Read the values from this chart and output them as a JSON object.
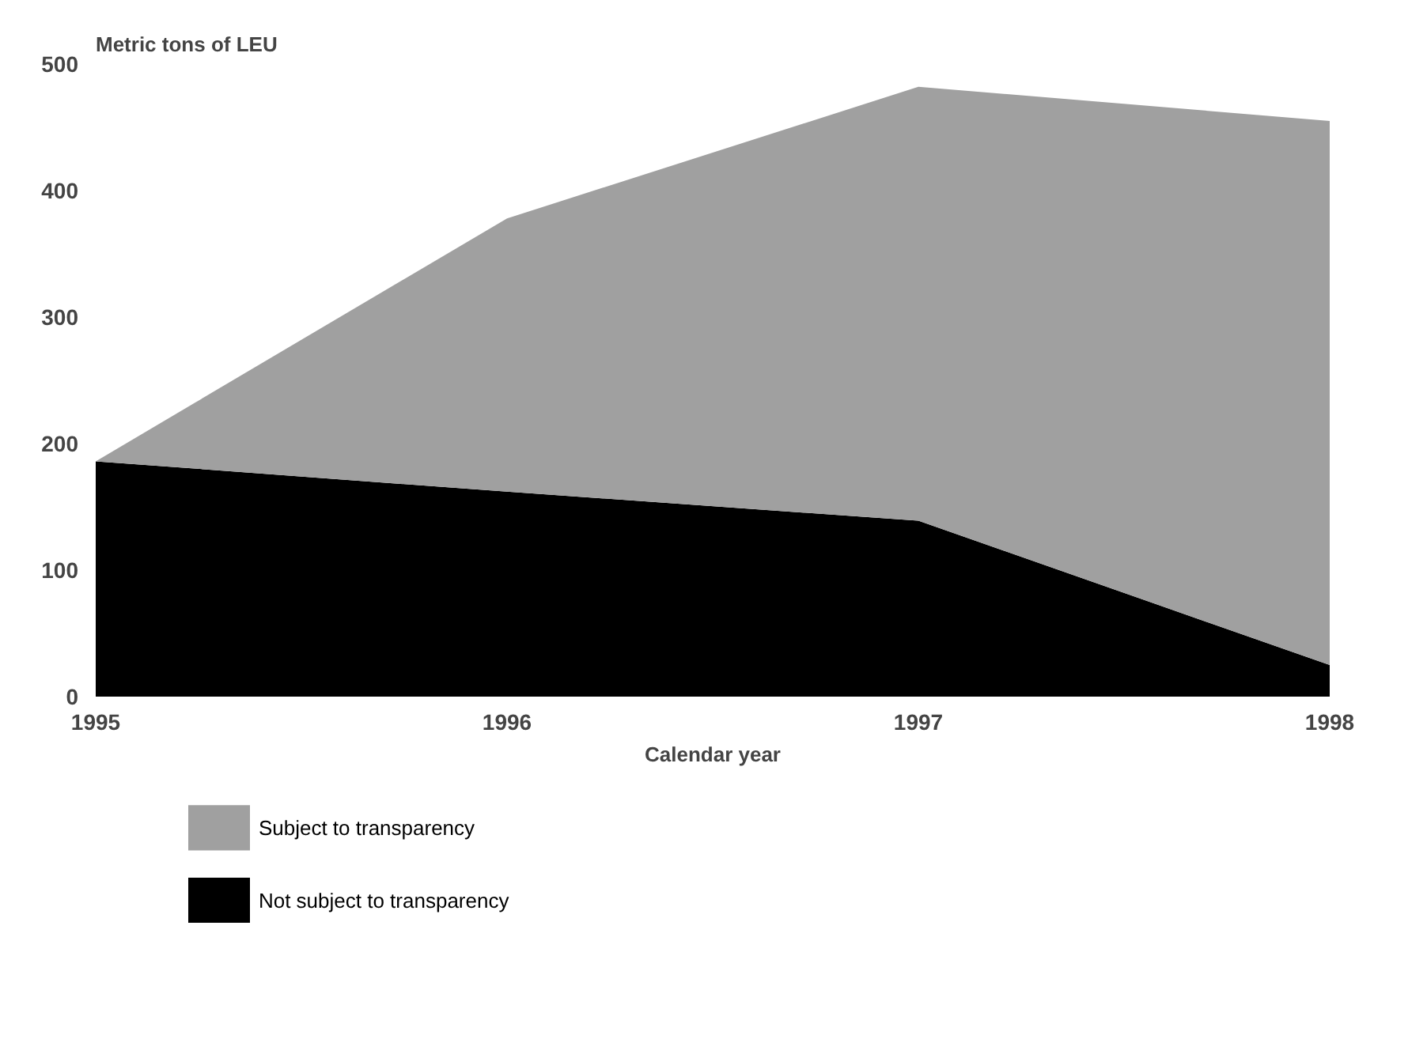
{
  "chart_data": {
    "type": "area",
    "stacked": true,
    "ylabel": "Metric tons of LEU",
    "xlabel": "Calendar year",
    "x": [
      1995,
      1996,
      1997,
      1998
    ],
    "series": [
      {
        "name": "Not subject to transparency",
        "color": "#000000",
        "values": [
          186,
          162,
          139,
          25
        ]
      },
      {
        "name": "Subject to transparency",
        "color": "#a0a0a0",
        "values": [
          0,
          216,
          343,
          430
        ]
      }
    ],
    "xlim": [
      1995,
      1998
    ],
    "ylim": [
      0,
      500
    ],
    "xticks": [
      1995,
      1996,
      1997,
      1998
    ],
    "yticks": [
      0,
      100,
      200,
      300,
      400,
      500
    ],
    "grid": false,
    "legend": "bottom"
  }
}
